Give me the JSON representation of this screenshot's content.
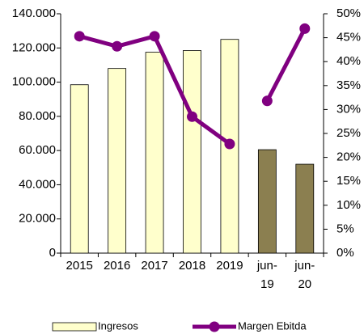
{
  "chart_data": {
    "type": "bar_line",
    "categories": [
      "2015",
      "2016",
      "2017",
      "2018",
      "2019",
      "jun-19",
      "jun-20"
    ],
    "series": [
      {
        "name": "Ingresos",
        "type": "bar",
        "color": "#ffffcc",
        "colors": [
          "#ffffcc",
          "#ffffcc",
          "#ffffcc",
          "#ffffcc",
          "#ffffcc",
          "#8b7f50",
          "#8b7f50"
        ],
        "values": [
          98500,
          108000,
          117500,
          118500,
          125000,
          60500,
          52000
        ]
      },
      {
        "name": "Margen Ebitda",
        "type": "line",
        "axis": "y2",
        "color": "#800080",
        "break_before": [
          5
        ],
        "values": [
          45.3,
          43.2,
          45.3,
          28.5,
          22.8,
          31.8,
          46.9
        ]
      }
    ],
    "ylim": [
      0,
      140000
    ],
    "yticks": [
      0,
      {
        "value": 20000,
        "label": "20.000"
      },
      {
        "value": 40000,
        "label": "40.000"
      },
      {
        "value": 60000,
        "label": "60.000"
      },
      {
        "value": 80000,
        "label": "80.000"
      },
      {
        "value": 100000,
        "label": "100.000"
      },
      {
        "value": 120000,
        "label": "120.000"
      },
      {
        "value": 140000,
        "label": "140.000"
      }
    ],
    "y2lim": [
      0,
      50
    ],
    "y2ticks": [
      {
        "value": 0,
        "label": "0%"
      },
      {
        "value": 5,
        "label": "5%"
      },
      {
        "value": 10,
        "label": "10%"
      },
      {
        "value": 15,
        "label": "15%"
      },
      {
        "value": 20,
        "label": "20%"
      },
      {
        "value": 25,
        "label": "25%"
      },
      {
        "value": 30,
        "label": "30%"
      },
      {
        "value": 35,
        "label": "35%"
      },
      {
        "value": 40,
        "label": "40%"
      },
      {
        "value": 45,
        "label": "45%"
      },
      {
        "value": 50,
        "label": "50%"
      }
    ],
    "legend": "bottom"
  }
}
